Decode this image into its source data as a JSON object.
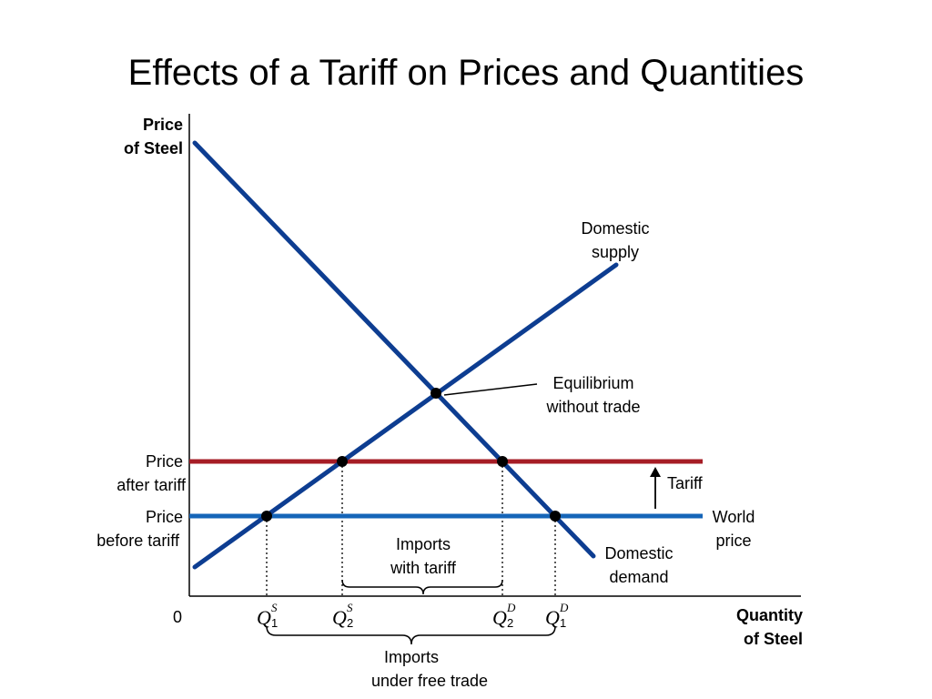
{
  "title": "Effects of a Tariff on Prices and Quantities",
  "axes": {
    "y_label": [
      "Price",
      "of Steel"
    ],
    "x_label": [
      "Quantity",
      "of Steel"
    ],
    "origin": "0"
  },
  "curves": {
    "supply": [
      "Domestic",
      "supply"
    ],
    "demand": [
      "Domestic",
      "demand"
    ]
  },
  "price_lines": {
    "after_tariff": [
      "Price",
      "after tariff"
    ],
    "before_tariff": [
      "Price",
      "before tariff"
    ],
    "world_price": [
      "World",
      "price"
    ],
    "tariff": "Tariff"
  },
  "annotations": {
    "equilibrium": [
      "Equilibrium",
      "without trade"
    ],
    "imports_tariff": [
      "Imports",
      "with tariff"
    ],
    "imports_free": [
      "Imports",
      "under free trade"
    ]
  },
  "quantities": [
    {
      "sym": "Q",
      "sup": "S",
      "sub": "1"
    },
    {
      "sym": "Q",
      "sup": "S",
      "sub": "2"
    },
    {
      "sym": "Q",
      "sup": "D",
      "sub": "2"
    },
    {
      "sym": "Q",
      "sup": "D",
      "sub": "1"
    }
  ],
  "colors": {
    "curve_blue": "#0d3d91",
    "tariff_red": "#a61d26",
    "world_blue": "#1565b8"
  }
}
